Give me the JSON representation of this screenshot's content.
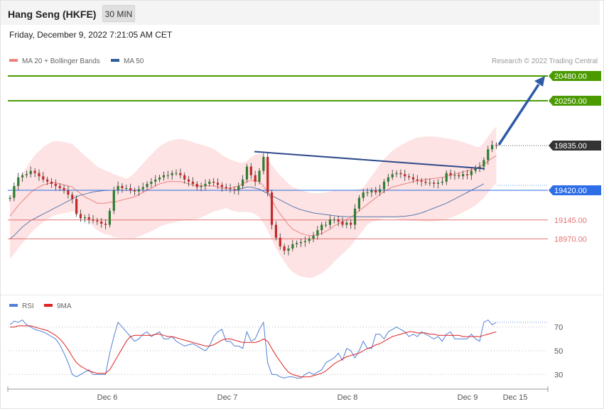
{
  "header": {
    "title": "Hang Seng (HKFE)",
    "timeframe": "30 MIN"
  },
  "timestamp": "Friday, December 9, 2022 7:21:05 AM CET",
  "credit": "Research © 2022 Trading Central",
  "legend_main": [
    {
      "label": "MA 20 + Bollinger Bands",
      "color": "#f08080"
    },
    {
      "label": "MA 50",
      "color": "#2d5b9a"
    }
  ],
  "legend_rsi": [
    {
      "label": "RSI",
      "color": "#4f7fd8"
    },
    {
      "label": "9MA",
      "color": "#e02020"
    }
  ],
  "colors": {
    "up": "#2e7d32",
    "down": "#c62828",
    "target": "#4a9a00",
    "pivot": "#2e6ee6",
    "support": "#e57373",
    "current": "#333333",
    "arrow": "#2f5aa6",
    "trendline": "#2f4a8a"
  },
  "chart_data": [
    {
      "type": "candlestick",
      "title": "Hang Seng (HKFE)",
      "ylim": [
        18750,
        20560
      ],
      "x_ticks": [
        "Dec 6",
        "Dec 7",
        "Dec 8",
        "Dec 9",
        "Dec 15"
      ],
      "levels": [
        {
          "label": "20480.00",
          "value": 20480,
          "kind": "target"
        },
        {
          "label": "20250.00",
          "value": 20250,
          "kind": "target"
        },
        {
          "label": "19835.00",
          "value": 19835,
          "kind": "current"
        },
        {
          "label": "19420.00",
          "value": 19420,
          "kind": "pivot"
        },
        {
          "label": "19145.00",
          "value": 19145,
          "kind": "support"
        },
        {
          "label": "18970.00",
          "value": 18970,
          "kind": "support"
        }
      ],
      "close": [
        19350,
        19460,
        19540,
        19560,
        19570,
        19600,
        19580,
        19550,
        19520,
        19500,
        19480,
        19460,
        19440,
        19420,
        19380,
        19340,
        19200,
        19160,
        19170,
        19150,
        19140,
        19130,
        19110,
        19100,
        19230,
        19420,
        19460,
        19440,
        19440,
        19420,
        19410,
        19430,
        19450,
        19480,
        19500,
        19520,
        19540,
        19560,
        19560,
        19580,
        19580,
        19560,
        19520,
        19500,
        19480,
        19450,
        19460,
        19480,
        19500,
        19490,
        19470,
        19450,
        19440,
        19430,
        19420,
        19460,
        19520,
        19640,
        19560,
        19500,
        19600,
        19730,
        19400,
        19100,
        18980,
        18900,
        18860,
        18880,
        18920,
        18930,
        18940,
        18950,
        18970,
        19000,
        19050,
        19100,
        19100,
        19150,
        19150,
        19130,
        19100,
        19120,
        19100,
        19250,
        19350,
        19400,
        19400,
        19420,
        19400,
        19430,
        19500,
        19540,
        19570,
        19580,
        19570,
        19550,
        19540,
        19520,
        19510,
        19500,
        19490,
        19490,
        19480,
        19490,
        19500,
        19580,
        19560,
        19560,
        19550,
        19570,
        19560,
        19600,
        19620,
        19640,
        19700,
        19800,
        19840,
        19835
      ],
      "ma20": [
        19180,
        19230,
        19280,
        19320,
        19360,
        19400,
        19430,
        19450,
        19470,
        19480,
        19490,
        19490,
        19480,
        19470,
        19460,
        19450,
        19420,
        19390,
        19360,
        19340,
        19320,
        19300,
        19300,
        19300,
        19310,
        19310,
        19320,
        19330,
        19340,
        19350,
        19360,
        19380,
        19400,
        19420,
        19440,
        19460,
        19480,
        19490,
        19500,
        19500,
        19500,
        19500,
        19490,
        19480,
        19470,
        19460,
        19460,
        19460,
        19460,
        19460,
        19450,
        19440,
        19440,
        19440,
        19450,
        19460,
        19480,
        19500,
        19510,
        19510,
        19500,
        19460,
        19400,
        19330,
        19260,
        19200,
        19150,
        19100,
        19060,
        19040,
        19020,
        19010,
        19000,
        19000,
        19010,
        19020,
        19040,
        19060,
        19090,
        19110,
        19130,
        19150,
        19170,
        19200,
        19230,
        19260,
        19290,
        19320,
        19350,
        19380,
        19410,
        19430,
        19450,
        19460,
        19470,
        19480,
        19490,
        19500,
        19510,
        19515,
        19520,
        19525,
        19530,
        19535,
        19540,
        19550,
        19560,
        19570,
        19580,
        19590,
        19600,
        19610,
        19620,
        19640,
        19660,
        19690,
        19720,
        19740
      ],
      "ma50": [
        18970,
        19000,
        19040,
        19080,
        19110,
        19140,
        19160,
        19180,
        19200,
        19220,
        19240,
        19260,
        19280,
        19300,
        19320,
        19340,
        19360,
        19375,
        19385,
        19395,
        19405,
        19410,
        19415,
        19418,
        19420,
        19420,
        19420,
        19420,
        19420,
        19420,
        19420,
        19420,
        19420,
        19420,
        19420,
        19420,
        19420,
        19420,
        19420,
        19420,
        19420,
        19420,
        19420,
        19420,
        19420,
        19420,
        19420,
        19420,
        19420,
        19420,
        19420,
        19420,
        19420,
        19420,
        19420,
        19430,
        19440,
        19450,
        19450,
        19440,
        19430,
        19410,
        19390,
        19370,
        19350,
        19330,
        19310,
        19290,
        19270,
        19255,
        19240,
        19230,
        19220,
        19210,
        19205,
        19200,
        19195,
        19190,
        19185,
        19180,
        19178,
        19176,
        19175,
        19175,
        19175,
        19175,
        19175,
        19175,
        19175,
        19175,
        19175,
        19175,
        19175,
        19175,
        19178,
        19180,
        19185,
        19190,
        19200,
        19210,
        19225,
        19240,
        19255,
        19270,
        19285,
        19300,
        19320,
        19340,
        19360,
        19380,
        19400,
        19420,
        19440,
        19460,
        19480
      ],
      "rsi": [
        72,
        75,
        74,
        76,
        72,
        70,
        68,
        67,
        66,
        64,
        62,
        60,
        55,
        48,
        40,
        30,
        28,
        30,
        32,
        34,
        30,
        30,
        30,
        30,
        48,
        62,
        74,
        70,
        66,
        62,
        58,
        60,
        64,
        66,
        62,
        64,
        66,
        60,
        60,
        62,
        58,
        56,
        54,
        55,
        56,
        54,
        52,
        50,
        54,
        62,
        66,
        68,
        58,
        58,
        54,
        54,
        52,
        66,
        58,
        60,
        68,
        74,
        40,
        30,
        30,
        28,
        27,
        28,
        28,
        27,
        27,
        30,
        32,
        30,
        32,
        34,
        40,
        42,
        44,
        48,
        42,
        52,
        50,
        44,
        50,
        58,
        52,
        52,
        64,
        64,
        60,
        66,
        68,
        70,
        68,
        66,
        62,
        64,
        62,
        66,
        64,
        62,
        60,
        62,
        58,
        64,
        66,
        60,
        60,
        60,
        60,
        64,
        60,
        58,
        74,
        76,
        72,
        74
      ],
      "rsi_ma": [
        70,
        70,
        71,
        71,
        71,
        71,
        70,
        69,
        68,
        67,
        65,
        63,
        60,
        56,
        51,
        45,
        40,
        37,
        35,
        33,
        32,
        31,
        31,
        31,
        34,
        40,
        46,
        52,
        58,
        62,
        63,
        63,
        63,
        63,
        63,
        64,
        64,
        63,
        62,
        62,
        61,
        60,
        59,
        58,
        57,
        56,
        55,
        54,
        54,
        55,
        57,
        59,
        60,
        60,
        59,
        58,
        57,
        57,
        57,
        57,
        58,
        60,
        58,
        52,
        46,
        41,
        36,
        32,
        30,
        29,
        28,
        28,
        28,
        29,
        30,
        31,
        33,
        36,
        39,
        41,
        43,
        45,
        46,
        47,
        48,
        50,
        52,
        53,
        55,
        56,
        58,
        60,
        62,
        63,
        64,
        65,
        66,
        66,
        65,
        65,
        65,
        64,
        64,
        63,
        63,
        63,
        63,
        63,
        63,
        62,
        62,
        62,
        62,
        62,
        63,
        64,
        65,
        66
      ],
      "rsi_ylim": [
        18,
        82
      ],
      "rsi_ticks": [
        30,
        50,
        70
      ]
    }
  ]
}
